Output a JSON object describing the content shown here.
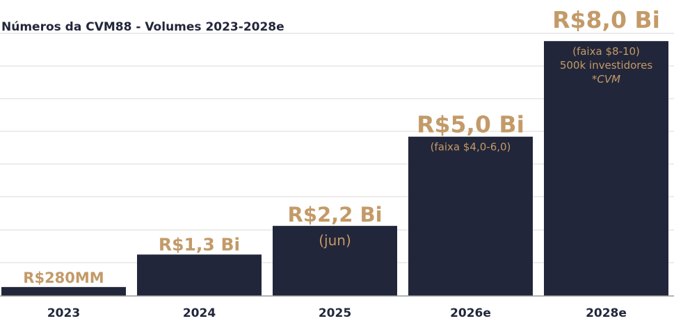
{
  "chart_data": {
    "type": "bar",
    "title": "Números da CVM88 - Volumes 2023-2028e",
    "unit": "R$ Bi",
    "categories": [
      "2023",
      "2024",
      "2025",
      "2026e",
      "2028e"
    ],
    "values": [
      0.28,
      1.3,
      2.2,
      5.0,
      8.0
    ],
    "value_labels": [
      "R$280MM",
      "R$1,3 Bi",
      "R$2,2 Bi",
      "R$5,0 Bi",
      "R$8,0 Bi"
    ],
    "notes": [
      [],
      [],
      [
        "(jun)"
      ],
      [
        "(faixa $4,0-6,0)"
      ],
      [
        "(faixa $8-10)",
        "500k investidores",
        "*CVM"
      ]
    ],
    "ylim": [
      0,
      8.2
    ],
    "grid": true,
    "legend": "none",
    "xlabel": "",
    "ylabel": ""
  },
  "colors": {
    "bar": "#22263a",
    "label": "#c39a68",
    "text": "#22263a",
    "grid": "#d9d9d9",
    "axis": "#9a9a9a"
  }
}
